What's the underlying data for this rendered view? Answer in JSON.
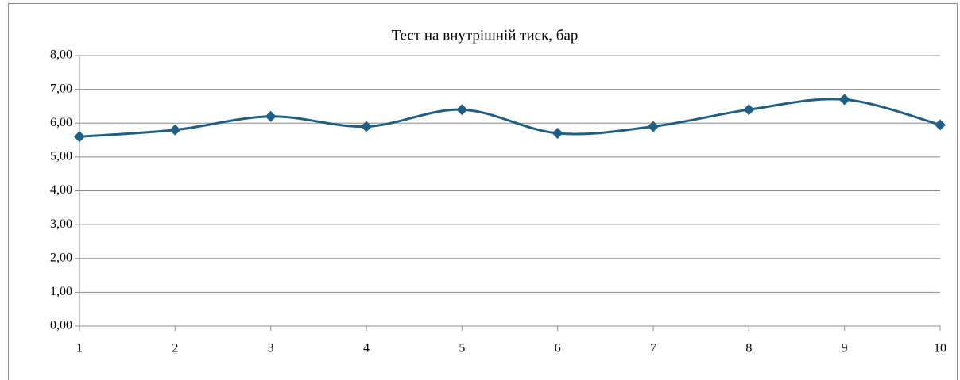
{
  "chart_data": {
    "type": "line",
    "title": "Тест на внутрішній тиск, бар",
    "x": [
      1,
      2,
      3,
      4,
      5,
      6,
      7,
      8,
      9,
      10
    ],
    "values": [
      5.6,
      5.8,
      6.2,
      5.9,
      6.4,
      5.7,
      5.9,
      6.4,
      6.7,
      5.95
    ],
    "color": "#1f5f85",
    "smooth": true,
    "marker": "diamond",
    "xlim": [
      1,
      10
    ],
    "xticks": [
      1,
      2,
      3,
      4,
      5,
      6,
      7,
      8,
      9,
      10
    ],
    "ylim": [
      0,
      8
    ],
    "yticks": [
      {
        "value": 0,
        "label": "0,00"
      },
      {
        "value": 1,
        "label": "1,00"
      },
      {
        "value": 2,
        "label": "2,00"
      },
      {
        "value": 3,
        "label": "3,00"
      },
      {
        "value": 4,
        "label": "4,00"
      },
      {
        "value": 5,
        "label": "5,00"
      },
      {
        "value": 6,
        "label": "6,00"
      },
      {
        "value": 7,
        "label": "7,00"
      },
      {
        "value": 8,
        "label": "8,00"
      }
    ],
    "grid": true
  }
}
